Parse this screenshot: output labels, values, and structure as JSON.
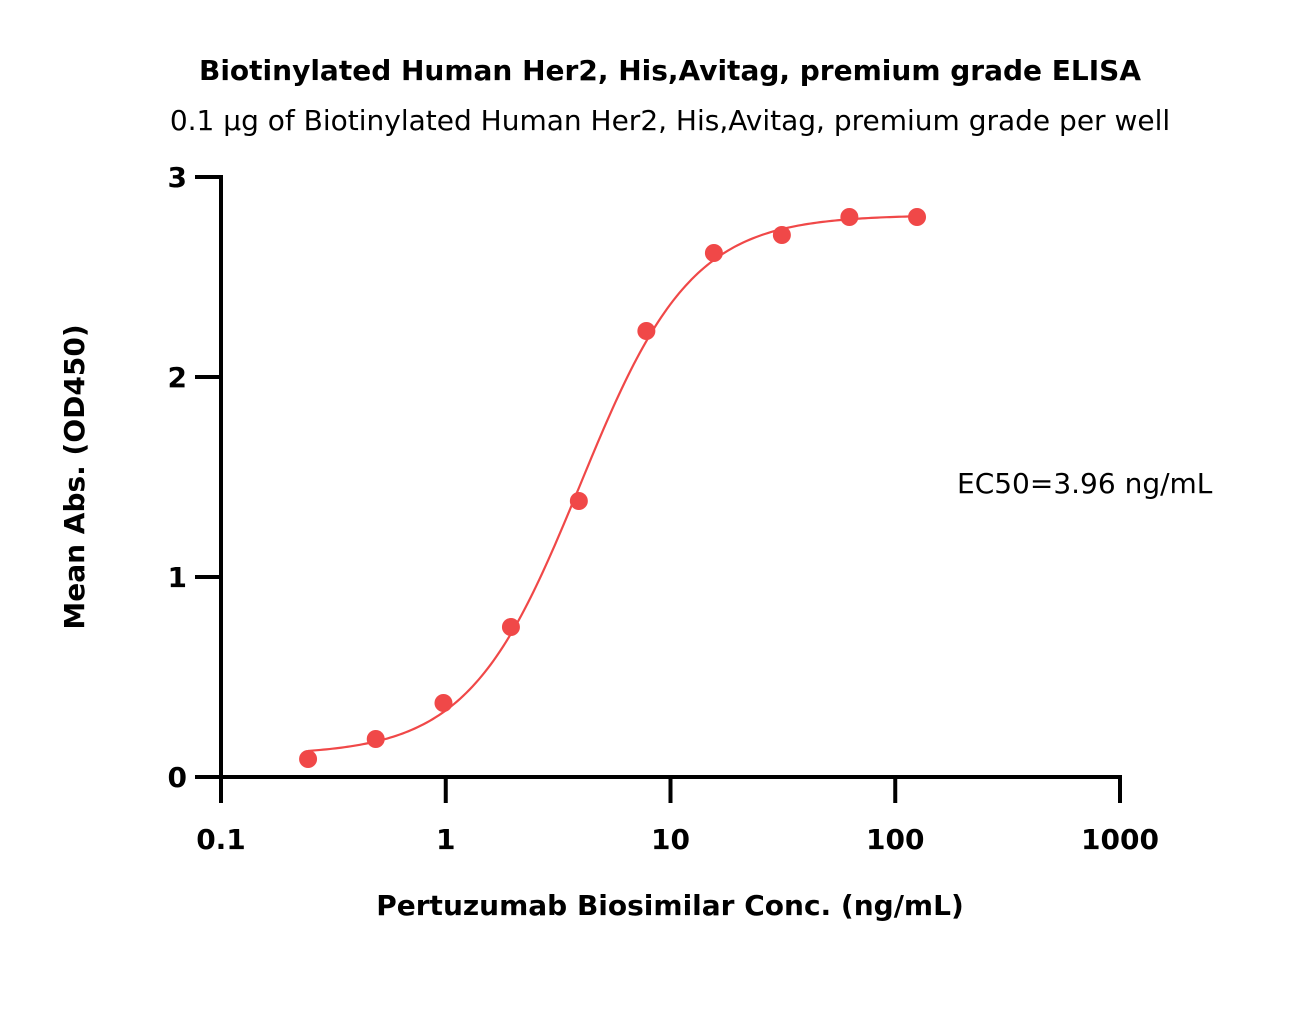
{
  "chart_data": {
    "type": "scatter",
    "title": "Biotinylated Human Her2, His,Avitag, premium grade ELISA",
    "subtitle": "0.1 µg of Biotinylated Human Her2, His,Avitag, premium grade per well",
    "xlabel": "Pertuzumab Biosimilar Conc. (ng/mL)",
    "ylabel": "Mean Abs. (OD450)",
    "x_scale": "log",
    "xlim": [
      0.1,
      1000
    ],
    "ylim": [
      0,
      3
    ],
    "x_ticks": [
      0.1,
      1,
      10,
      100,
      1000
    ],
    "x_tick_labels": [
      "0.1",
      "1",
      "10",
      "100",
      "1000"
    ],
    "y_ticks": [
      0,
      1,
      2,
      3
    ],
    "y_tick_labels": [
      "0",
      "1",
      "2",
      "3"
    ],
    "grid": false,
    "series": [
      {
        "color": "#f04848",
        "x": [
          0.244,
          0.488,
          0.977,
          1.95,
          3.91,
          7.81,
          15.6,
          31.3,
          62.5,
          125
        ],
        "y": [
          0.09,
          0.19,
          0.37,
          0.75,
          1.38,
          2.23,
          2.62,
          2.71,
          2.8,
          2.8
        ]
      }
    ],
    "fit_curve": {
      "model": "4PL",
      "bottom": 0.11,
      "top": 2.81,
      "ec50": 3.96,
      "hill": 1.75,
      "color": "#f04848"
    },
    "annotations": [
      {
        "text": "EC50=3.96 ng/mL"
      }
    ]
  }
}
